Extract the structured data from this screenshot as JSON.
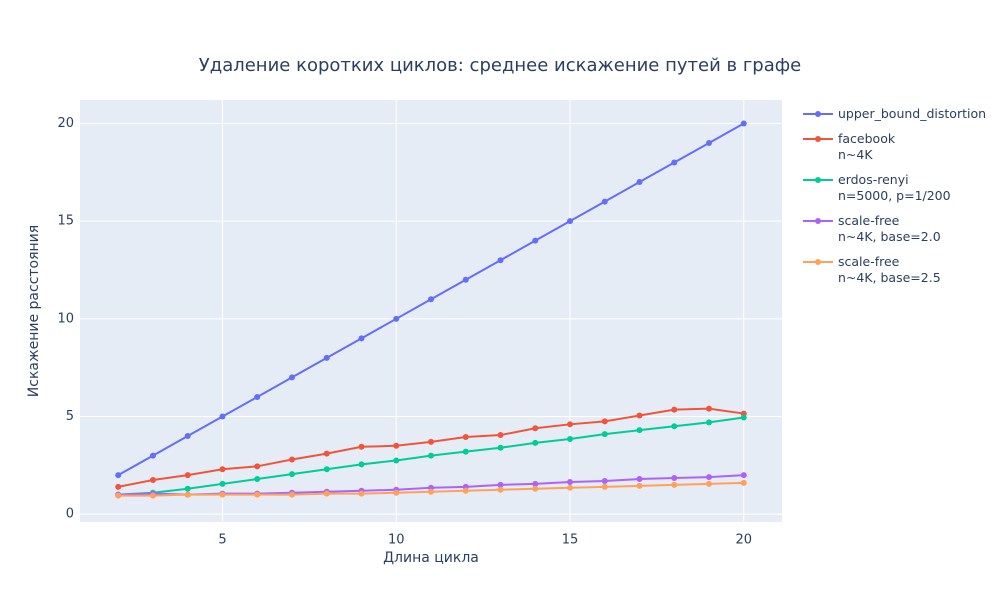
{
  "chart_data": {
    "type": "line",
    "title": "Удаление коротких циклов: среднее искажение путей в графе",
    "x_label": "Длина цикла",
    "y_label": "Искажение расстояния",
    "x": [
      2,
      3,
      4,
      5,
      6,
      7,
      8,
      9,
      10,
      11,
      12,
      13,
      14,
      15,
      16,
      17,
      18,
      19,
      20
    ],
    "series": [
      {
        "name": "upper_bound_distortion",
        "color": "#636efa",
        "values": [
          2,
          3,
          4,
          5,
          6,
          7,
          8,
          9,
          10,
          11,
          12,
          13,
          14,
          15,
          16,
          17,
          18,
          19,
          20
        ]
      },
      {
        "name": "facebook\nn~4K",
        "color": "#ef553b",
        "values": [
          1.4,
          1.75,
          2.0,
          2.3,
          2.45,
          2.8,
          3.1,
          3.45,
          3.5,
          3.7,
          3.95,
          4.05,
          4.4,
          4.6,
          4.75,
          5.05,
          5.35,
          5.4,
          5.15
        ]
      },
      {
        "name": "erdos-renyi\nn=5000, p=1/200",
        "color": "#00cc96",
        "values": [
          1.0,
          1.1,
          1.3,
          1.55,
          1.8,
          2.05,
          2.3,
          2.55,
          2.75,
          3.0,
          3.2,
          3.4,
          3.65,
          3.85,
          4.1,
          4.3,
          4.5,
          4.7,
          4.95
        ]
      },
      {
        "name": "scale-free\nn~4K, base=2.0",
        "color": "#ab63fa",
        "values": [
          1.0,
          1.05,
          1.0,
          1.05,
          1.05,
          1.1,
          1.15,
          1.2,
          1.25,
          1.35,
          1.4,
          1.5,
          1.55,
          1.65,
          1.7,
          1.8,
          1.85,
          1.9,
          2.0
        ]
      },
      {
        "name": "scale-free\nn~4K, base=2.5",
        "color": "#ffa15a",
        "values": [
          0.95,
          0.95,
          1.0,
          1.0,
          1.0,
          1.0,
          1.05,
          1.05,
          1.1,
          1.15,
          1.2,
          1.25,
          1.3,
          1.35,
          1.4,
          1.45,
          1.5,
          1.55,
          1.6
        ]
      }
    ],
    "xlim": [
      0.9,
      21.1
    ],
    "ylim": [
      -0.4,
      21.2
    ],
    "xticks": [
      5,
      10,
      15,
      20
    ],
    "yticks": [
      0,
      5,
      10,
      15,
      20
    ],
    "grid": true
  }
}
